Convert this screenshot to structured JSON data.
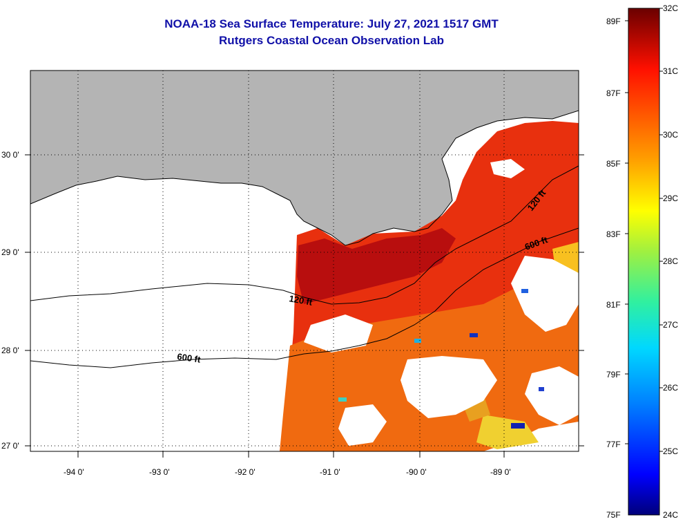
{
  "header": {
    "title": "NOAA-18 Sea Surface Temperature:  July 27, 2021 1517 GMT",
    "subtitle": "Rutgers Coastal Ocean Observation Lab"
  },
  "map": {
    "lat_labels": [
      "30 0'",
      "29 0'",
      "28 0'",
      "27 0'"
    ],
    "lon_labels": [
      "-94 0'",
      "-93 0'",
      "-92 0'",
      "-91 0'",
      "-90 0'",
      "-89 0'"
    ],
    "contours": {
      "shallow_label": "120 ft",
      "deep_label": "600 ft"
    },
    "colors": {
      "land": "#b4b4b4",
      "no_data": "#ffffff",
      "warm": "#e8300e",
      "hot": "#b80e0e",
      "orange": "#f06a10"
    }
  },
  "colorbar": {
    "fahrenheit_labels": [
      "89F",
      "87F",
      "85F",
      "83F",
      "81F",
      "79F",
      "77F",
      "75F"
    ],
    "celsius_labels": [
      "32C",
      "31C",
      "30C",
      "29C",
      "28C",
      "27C",
      "26C",
      "25C",
      "24C"
    ]
  }
}
